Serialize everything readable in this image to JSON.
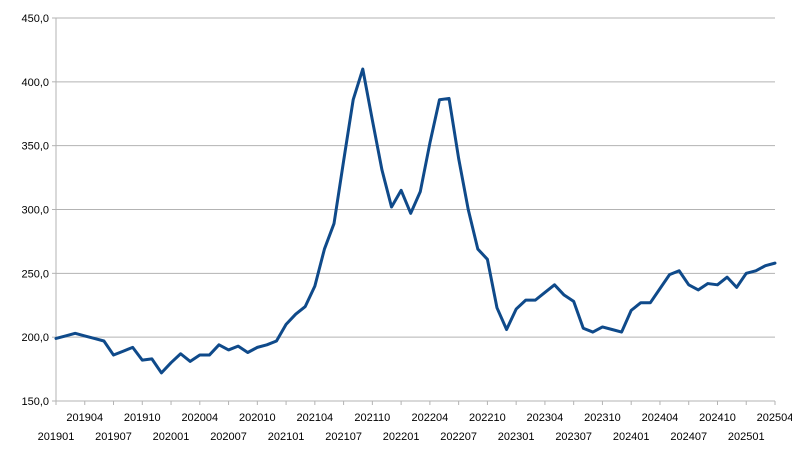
{
  "chart_data": {
    "type": "line",
    "title": "",
    "xlabel": "",
    "ylabel": "",
    "ylim": [
      150,
      450
    ],
    "yticks": [
      150,
      200,
      250,
      300,
      350,
      400,
      450
    ],
    "ytick_labels": [
      "150,0",
      "200,0",
      "250,0",
      "300,0",
      "350,0",
      "400,0",
      "450,0"
    ],
    "grid": true,
    "x_tick_labels": [
      "201901",
      "201904",
      "201907",
      "201910",
      "202001",
      "202004",
      "202007",
      "202010",
      "202101",
      "202104",
      "202107",
      "202110",
      "202201",
      "202204",
      "202207",
      "202210",
      "202301",
      "202304",
      "202307",
      "202310",
      "202401",
      "202404",
      "202407",
      "202410",
      "202501",
      "202504"
    ],
    "x": [
      "201901",
      "201902",
      "201903",
      "201904",
      "201905",
      "201906",
      "201907",
      "201908",
      "201909",
      "201910",
      "201911",
      "201912",
      "202001",
      "202002",
      "202003",
      "202004",
      "202005",
      "202006",
      "202007",
      "202008",
      "202009",
      "202010",
      "202011",
      "202012",
      "202101",
      "202102",
      "202103",
      "202104",
      "202105",
      "202106",
      "202107",
      "202108",
      "202109",
      "202110",
      "202111",
      "202112",
      "202201",
      "202202",
      "202203",
      "202204",
      "202205",
      "202206",
      "202207",
      "202208",
      "202209",
      "202210",
      "202211",
      "202212",
      "202301",
      "202302",
      "202303",
      "202304",
      "202305",
      "202306",
      "202307",
      "202308",
      "202309",
      "202310",
      "202311",
      "202312",
      "202401",
      "202402",
      "202403",
      "202404",
      "202405",
      "202406",
      "202407",
      "202408",
      "202409",
      "202410",
      "202411",
      "202412",
      "202501",
      "202502",
      "202503",
      "202504"
    ],
    "series": [
      {
        "color": "#0f4a8a",
        "values": [
          199,
          201,
          203,
          201,
          199,
          197,
          186,
          189,
          192,
          182,
          183,
          172,
          180,
          187,
          181,
          186,
          186,
          194,
          190,
          193,
          188,
          192,
          194,
          197,
          210,
          218,
          224,
          240,
          269,
          289,
          338,
          386,
          410,
          370,
          331,
          302,
          315,
          297,
          314,
          352,
          386,
          387,
          340,
          300,
          269,
          261,
          223,
          206,
          222,
          229,
          229,
          235,
          241,
          233,
          228,
          207,
          204,
          208,
          206,
          204,
          221,
          227,
          227,
          238,
          249,
          252,
          241,
          237,
          242,
          241,
          247,
          239,
          250,
          252,
          256,
          258
        ]
      }
    ]
  }
}
